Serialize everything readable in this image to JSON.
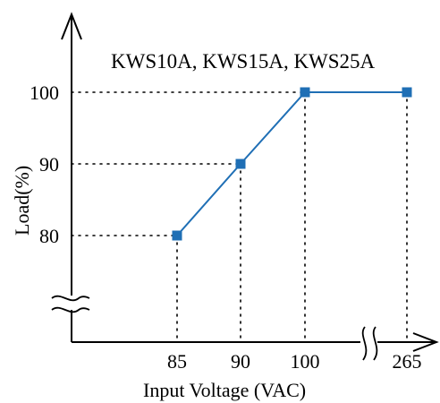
{
  "chart_data": {
    "type": "line",
    "title": "KWS10A, KWS15A, KWS25A",
    "xlabel": "Input Voltage (VAC)",
    "ylabel": "Load(%)",
    "x_ticks": [
      "85",
      "90",
      "100",
      "265"
    ],
    "y_ticks": [
      "80",
      "90",
      "100"
    ],
    "x_axis_break": true,
    "y_axis_break": true,
    "grid": false,
    "series": [
      {
        "color": "#1f6fb5",
        "points": [
          {
            "x": 85,
            "y": 80
          },
          {
            "x": 90,
            "y": 90
          },
          {
            "x": 100,
            "y": 100
          },
          {
            "x": 265,
            "y": 100
          }
        ]
      }
    ]
  }
}
